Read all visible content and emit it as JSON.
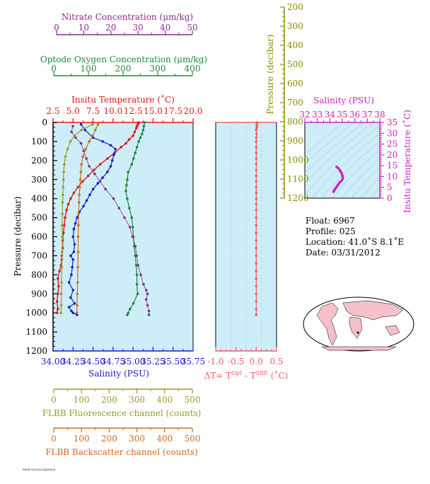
{
  "colors": {
    "nitrate": "#8b2a8b",
    "oxygen": "#1a8a3a",
    "temperature": "#e01818",
    "salinity": "#1a1ad0",
    "fluorescence": "#9a9a2a",
    "backscatter": "#d06a20",
    "pressure_right": "#8b8b00",
    "delta_t": "#f06060",
    "ts_magenta": "#d020c0",
    "plot_bg": "#cdeef8",
    "land": "#f6c0c8"
  },
  "axes": {
    "nitrate": {
      "title": "Nitrate Concentration (μm/kg)",
      "ticks": [
        "0",
        "10",
        "20",
        "30",
        "40",
        "50"
      ]
    },
    "oxygen": {
      "title": "Optode Oxygen Concentration (μm/kg)",
      "ticks": [
        "0",
        "100",
        "200",
        "300",
        "400"
      ]
    },
    "temperature": {
      "title": "Insitu Temperature (˚C)",
      "ticks": [
        "2.5",
        "5.0",
        "7.5",
        "10.0",
        "12.5",
        "15.0",
        "17.5",
        "20.0"
      ]
    },
    "pressure": {
      "title": "Pressure (decibar)",
      "ticks": [
        "0",
        "100",
        "200",
        "300",
        "400",
        "500",
        "600",
        "700",
        "800",
        "900",
        "1000",
        "1100",
        "1200"
      ]
    },
    "salinity": {
      "title": "Salinity (PSU)",
      "ticks": [
        "34.00",
        "34.25",
        "34.50",
        "34.75",
        "35.00",
        "35.25",
        "35.50",
        "35.75"
      ]
    },
    "fluorescence": {
      "title": "FLBB Fluorescence channel (counts)",
      "ticks": [
        "0",
        "100",
        "200",
        "300",
        "400",
        "500"
      ]
    },
    "backscatter": {
      "title": "FLBB Backscatter channel (counts)",
      "ticks": [
        "0",
        "100",
        "200",
        "300",
        "400",
        "500"
      ]
    },
    "delta_t": {
      "title_main": "ΔT= T",
      "sup1": "Opt",
      "mid": " - T",
      "sup2": "SBE",
      "tail": " (˚C)",
      "ticks": [
        "-1.0",
        "-0.5",
        "0.0",
        "0.5"
      ]
    },
    "pressure_right": {
      "title": "Pressure (decibar)",
      "ticks": [
        "200",
        "300",
        "400",
        "500",
        "600",
        "700",
        "800",
        "900",
        "1000",
        "1100",
        "1200"
      ]
    },
    "ts_salinity": {
      "title": "Salinity (PSU)",
      "ticks": [
        "32",
        "33",
        "34",
        "35",
        "36",
        "37",
        "38"
      ]
    },
    "ts_temperature": {
      "title": "Insitu Temperature (˚C)",
      "ticks": [
        "0",
        "5",
        "10",
        "15",
        "20",
        "25",
        "30",
        "35"
      ]
    }
  },
  "info": {
    "float": "Float:  6967",
    "profile": "Profile:  025",
    "location": "Location:  41.0˚S   8.1˚E",
    "date": "Date:  03/31/2012"
  },
  "footer_code": "F6967/025/1204/00/00",
  "chart_data": {
    "type": "line",
    "y_axis": "pressure",
    "ylim": [
      1200,
      0
    ],
    "series": [
      {
        "name": "Insitu Temperature",
        "unit": "˚C",
        "xlim": [
          2.5,
          20.0
        ],
        "x": [
          13.2,
          13.1,
          13.0,
          12.9,
          12.7,
          12.5,
          12.0,
          11.6,
          11.0,
          10.2,
          9.3,
          8.4,
          7.6,
          6.9,
          6.2,
          5.6,
          5.1,
          4.7,
          4.4,
          4.2,
          4.0,
          3.9,
          3.8,
          3.7,
          3.7,
          3.6,
          3.6,
          3.5,
          3.3,
          3.1,
          3.2,
          3.1,
          3.0,
          3.1,
          3.0
        ],
        "y": [
          0,
          10,
          20,
          30,
          50,
          70,
          90,
          110,
          130,
          160,
          190,
          220,
          250,
          280,
          310,
          340,
          370,
          400,
          430,
          460,
          500,
          540,
          580,
          620,
          660,
          700,
          720,
          750,
          780,
          820,
          860,
          900,
          940,
          980,
          1000
        ]
      },
      {
        "name": "Salinity",
        "unit": "PSU",
        "xlim": [
          34.0,
          35.75
        ],
        "x": [
          34.35,
          34.4,
          34.5,
          34.62,
          34.72,
          34.78,
          34.76,
          34.74,
          34.72,
          34.68,
          34.62,
          34.56,
          34.5,
          34.46,
          34.42,
          34.38,
          34.33,
          34.3,
          34.28,
          34.26,
          34.25,
          34.27,
          34.26,
          34.22,
          34.25,
          34.24,
          34.23,
          34.2,
          34.25,
          34.22,
          34.27,
          34.2,
          34.23,
          34.25,
          34.3
        ],
        "y": [
          10,
          40,
          80,
          100,
          120,
          140,
          170,
          200,
          230,
          260,
          290,
          320,
          350,
          380,
          410,
          440,
          470,
          500,
          530,
          560,
          600,
          640,
          680,
          700,
          720,
          760,
          800,
          840,
          880,
          920,
          950,
          970,
          990,
          1000,
          1010
        ]
      },
      {
        "name": "Optode Oxygen Concentration",
        "unit": "μm/kg",
        "xlim": [
          0,
          400
        ],
        "x": [
          262,
          260,
          258,
          255,
          250,
          245,
          240,
          235,
          230,
          225,
          215,
          212,
          210,
          208,
          212,
          218,
          225,
          228,
          230,
          232,
          235,
          238,
          240,
          240,
          242,
          230,
          220,
          215,
          212
        ],
        "y": [
          0,
          20,
          40,
          60,
          80,
          100,
          130,
          160,
          190,
          220,
          260,
          300,
          330,
          360,
          400,
          450,
          500,
          550,
          600,
          650,
          700,
          750,
          800,
          850,
          900,
          950,
          980,
          1000,
          1010
        ]
      },
      {
        "name": "Nitrate Concentration",
        "unit": "μm/kg",
        "xlim": [
          0,
          50
        ],
        "x": [
          6,
          5.5,
          7,
          9,
          10,
          11,
          12,
          14,
          16,
          18,
          21,
          23,
          25,
          27,
          28,
          29,
          29.5,
          30,
          31,
          32,
          33,
          33.5,
          33,
          33.5,
          34,
          34
        ],
        "y": [
          20,
          50,
          80,
          110,
          150,
          190,
          230,
          270,
          310,
          350,
          400,
          450,
          500,
          550,
          600,
          650,
          700,
          750,
          800,
          850,
          880,
          900,
          930,
          960,
          990,
          1010
        ]
      },
      {
        "name": "FLBB Fluorescence channel",
        "unit": "counts",
        "xlim": [
          0,
          500
        ],
        "x": [
          140,
          100,
          75,
          60,
          50,
          42,
          38,
          36,
          35,
          34,
          33,
          32,
          31,
          30,
          31,
          30,
          29,
          28,
          27,
          27,
          26
        ],
        "y": [
          10,
          40,
          70,
          100,
          140,
          180,
          220,
          260,
          300,
          340,
          380,
          420,
          480,
          540,
          600,
          680,
          760,
          840,
          900,
          960,
          1000
        ]
      },
      {
        "name": "FLBB Backscatter channel",
        "unit": "counts",
        "xlim": [
          0,
          500
        ],
        "x": [
          160,
          150,
          140,
          128,
          115,
          105,
          100,
          98,
          96,
          94,
          92,
          91,
          90,
          89,
          88,
          88,
          87,
          86,
          85,
          84,
          83
        ],
        "y": [
          10,
          40,
          70,
          100,
          140,
          180,
          220,
          260,
          300,
          340,
          380,
          420,
          480,
          540,
          600,
          680,
          760,
          840,
          900,
          960,
          1000
        ]
      },
      {
        "name": "ΔT",
        "unit": "˚C",
        "xlim": [
          -1.0,
          0.5
        ],
        "x": [
          0.02,
          0.01,
          0.02,
          0.01,
          0.0,
          0.01,
          0.0,
          0.0,
          0.0,
          0.0,
          0.0,
          0.0,
          0.0,
          0.0,
          0.0,
          0.0,
          0.0,
          0.0,
          0.0,
          0.0,
          0.0,
          0.0,
          0.0,
          0.0,
          0.0,
          0.0,
          0.0,
          0.0,
          0.0,
          0.0,
          0.0,
          0.0,
          0.0,
          0.0
        ],
        "y": [
          0,
          10,
          20,
          30,
          40,
          60,
          80,
          100,
          130,
          160,
          190,
          220,
          250,
          280,
          310,
          340,
          370,
          400,
          430,
          460,
          500,
          540,
          580,
          620,
          660,
          700,
          740,
          780,
          820,
          860,
          900,
          940,
          980,
          1010
        ]
      }
    ],
    "ts_diagram": {
      "xlim": [
        32,
        38
      ],
      "ylim": [
        0,
        35
      ],
      "salinity": [
        34.55,
        34.65,
        34.8,
        34.85,
        34.95,
        35.0,
        35.05,
        35.0,
        34.9,
        34.78,
        34.7,
        34.62,
        34.55,
        34.45,
        34.4,
        34.35,
        34.3
      ],
      "temperature": [
        14.5,
        14.0,
        13.0,
        12.3,
        11.5,
        10.5,
        9.5,
        8.5,
        7.8,
        7.2,
        6.5,
        5.8,
        5.2,
        4.5,
        4.0,
        3.5,
        3.0
      ]
    }
  }
}
